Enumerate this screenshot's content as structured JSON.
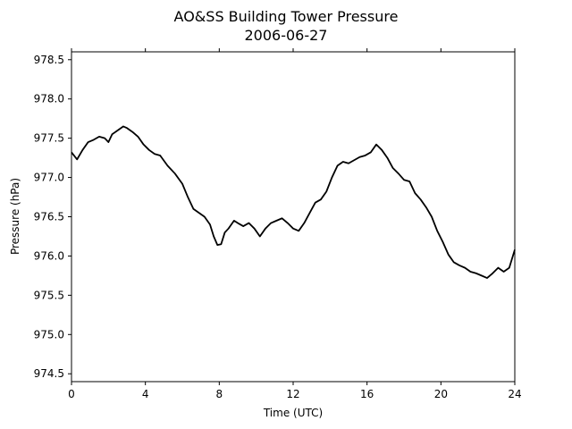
{
  "chart_data": {
    "type": "line",
    "title": "AO&SS Building Tower Pressure",
    "subtitle": "2006-06-27",
    "xlabel": "Time (UTC)",
    "ylabel": "Pressure (hPa)",
    "xlim": [
      0,
      24
    ],
    "ylim": [
      974.4,
      978.6
    ],
    "xticks": [
      0,
      4,
      8,
      12,
      16,
      20,
      24
    ],
    "yticks": [
      974.5,
      975.0,
      975.5,
      976.0,
      976.5,
      977.0,
      977.5,
      978.0,
      978.5
    ],
    "grid": false,
    "line_color": "#000000",
    "series": [
      {
        "x": [
          0,
          0.3,
          0.6,
          0.9,
          1.2,
          1.5,
          1.8,
          2.0,
          2.2,
          2.5,
          2.8,
          3.0,
          3.3,
          3.6,
          3.9,
          4.2,
          4.5,
          4.8,
          5.2,
          5.6,
          6.0,
          6.3,
          6.6,
          6.9,
          7.2,
          7.5,
          7.7,
          7.9,
          8.1,
          8.3,
          8.5,
          8.8,
          9.0,
          9.3,
          9.6,
          9.9,
          10.2,
          10.5,
          10.8,
          11.1,
          11.4,
          11.7,
          12.0,
          12.3,
          12.6,
          12.9,
          13.2,
          13.5,
          13.8,
          14.1,
          14.4,
          14.7,
          15.0,
          15.3,
          15.6,
          15.9,
          16.2,
          16.5,
          16.8,
          17.1,
          17.4,
          17.7,
          18.0,
          18.3,
          18.6,
          18.9,
          19.2,
          19.5,
          19.8,
          20.1,
          20.4,
          20.7,
          21.0,
          21.3,
          21.6,
          21.9,
          22.2,
          22.5,
          22.8,
          23.1,
          23.4,
          23.7,
          24.0
        ],
        "values": [
          977.32,
          977.23,
          977.35,
          977.45,
          977.48,
          977.52,
          977.5,
          977.45,
          977.55,
          977.6,
          977.65,
          977.63,
          977.58,
          977.52,
          977.42,
          977.35,
          977.3,
          977.28,
          977.15,
          977.05,
          976.92,
          976.75,
          976.6,
          976.55,
          976.5,
          976.4,
          976.25,
          976.14,
          976.15,
          976.3,
          976.35,
          976.45,
          976.42,
          976.38,
          976.42,
          976.35,
          976.25,
          976.35,
          976.42,
          976.45,
          976.48,
          976.42,
          976.35,
          976.32,
          976.42,
          976.55,
          976.68,
          976.72,
          976.82,
          977.0,
          977.15,
          977.2,
          977.18,
          977.22,
          977.26,
          977.28,
          977.32,
          977.42,
          977.35,
          977.25,
          977.12,
          977.05,
          976.97,
          976.95,
          976.8,
          976.72,
          976.62,
          976.5,
          976.32,
          976.18,
          976.02,
          975.92,
          975.88,
          975.85,
          975.8,
          975.78,
          975.75,
          975.72,
          975.78,
          975.85,
          975.8,
          975.85,
          976.08
        ]
      }
    ]
  }
}
